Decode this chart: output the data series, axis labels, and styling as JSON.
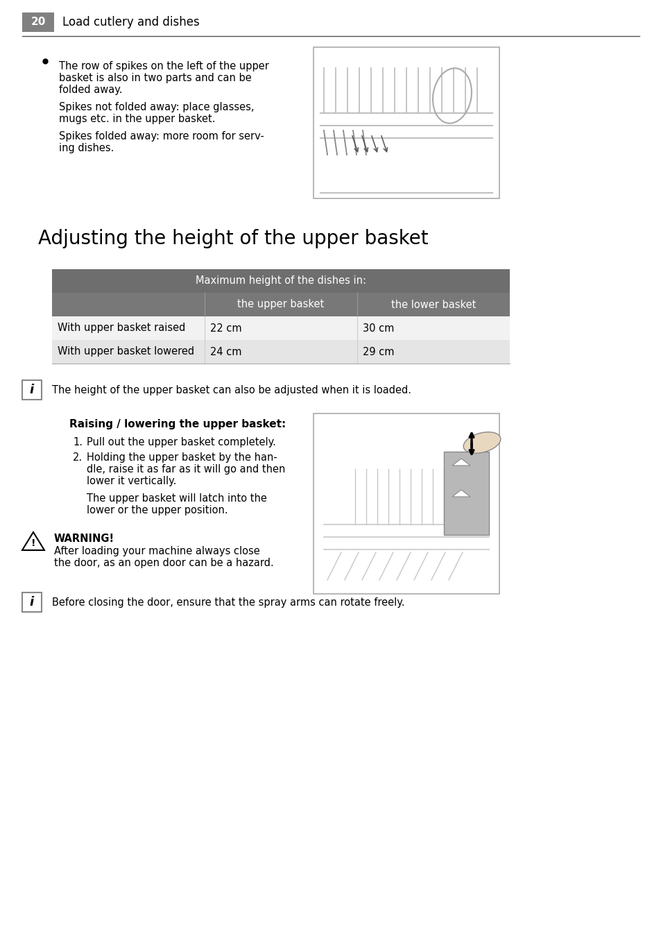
{
  "page_num": "20",
  "page_header": "Load cutlery and dishes",
  "section_title": "Adjusting the height of the upper basket",
  "background_color": "#ffffff",
  "page_num_bg": "#808080",
  "page_num_text_color": "#ffffff",
  "header_text_color": "#000000",
  "divider_color": "#aaaaaa",
  "table_dark_header_bg": "#6e6e6e",
  "table_mid_header_bg": "#787878",
  "table_row1_bg": "#f2f2f2",
  "table_row2_bg": "#e5e5e5",
  "table_header_text": "Maximum height of the dishes in:",
  "table_col2_header": "the upper basket",
  "table_col3_header": "the lower basket",
  "table_row1_col1": "With upper basket raised",
  "table_row1_col2": "22 cm",
  "table_row1_col3": "30 cm",
  "table_row2_col1": "With upper basket lowered",
  "table_row2_col2": "24 cm",
  "table_row2_col3": "29 cm",
  "bullet_line1": "The row of spikes on the left of the upper",
  "bullet_line2": "basket is also in two parts and can be",
  "bullet_line3": "folded away.",
  "sub1_line1": "Spikes not folded away: place glasses,",
  "sub1_line2": "mugs etc. in the upper basket.",
  "sub2_line1": "Spikes folded away: more room for serv-",
  "sub2_line2": "ing dishes.",
  "info1_text": "The height of the upper basket can also be adjusted when it is loaded.",
  "bold_heading": "Raising / lowering the upper basket:",
  "step1": "Pull out the upper basket completely.",
  "step2a": "Holding the upper basket by the han-",
  "step2b": "dle, raise it as far as it will go and then",
  "step2c": "lower it vertically.",
  "latch1": "The upper basket will latch into the",
  "latch2": "lower or the upper position.",
  "warning_title": "WARNING!",
  "warning1": "After loading your machine always close",
  "warning2": "the door, as an open door can be a hazard.",
  "info2_text": "Before closing the door, ensure that the spray arms can rotate freely."
}
